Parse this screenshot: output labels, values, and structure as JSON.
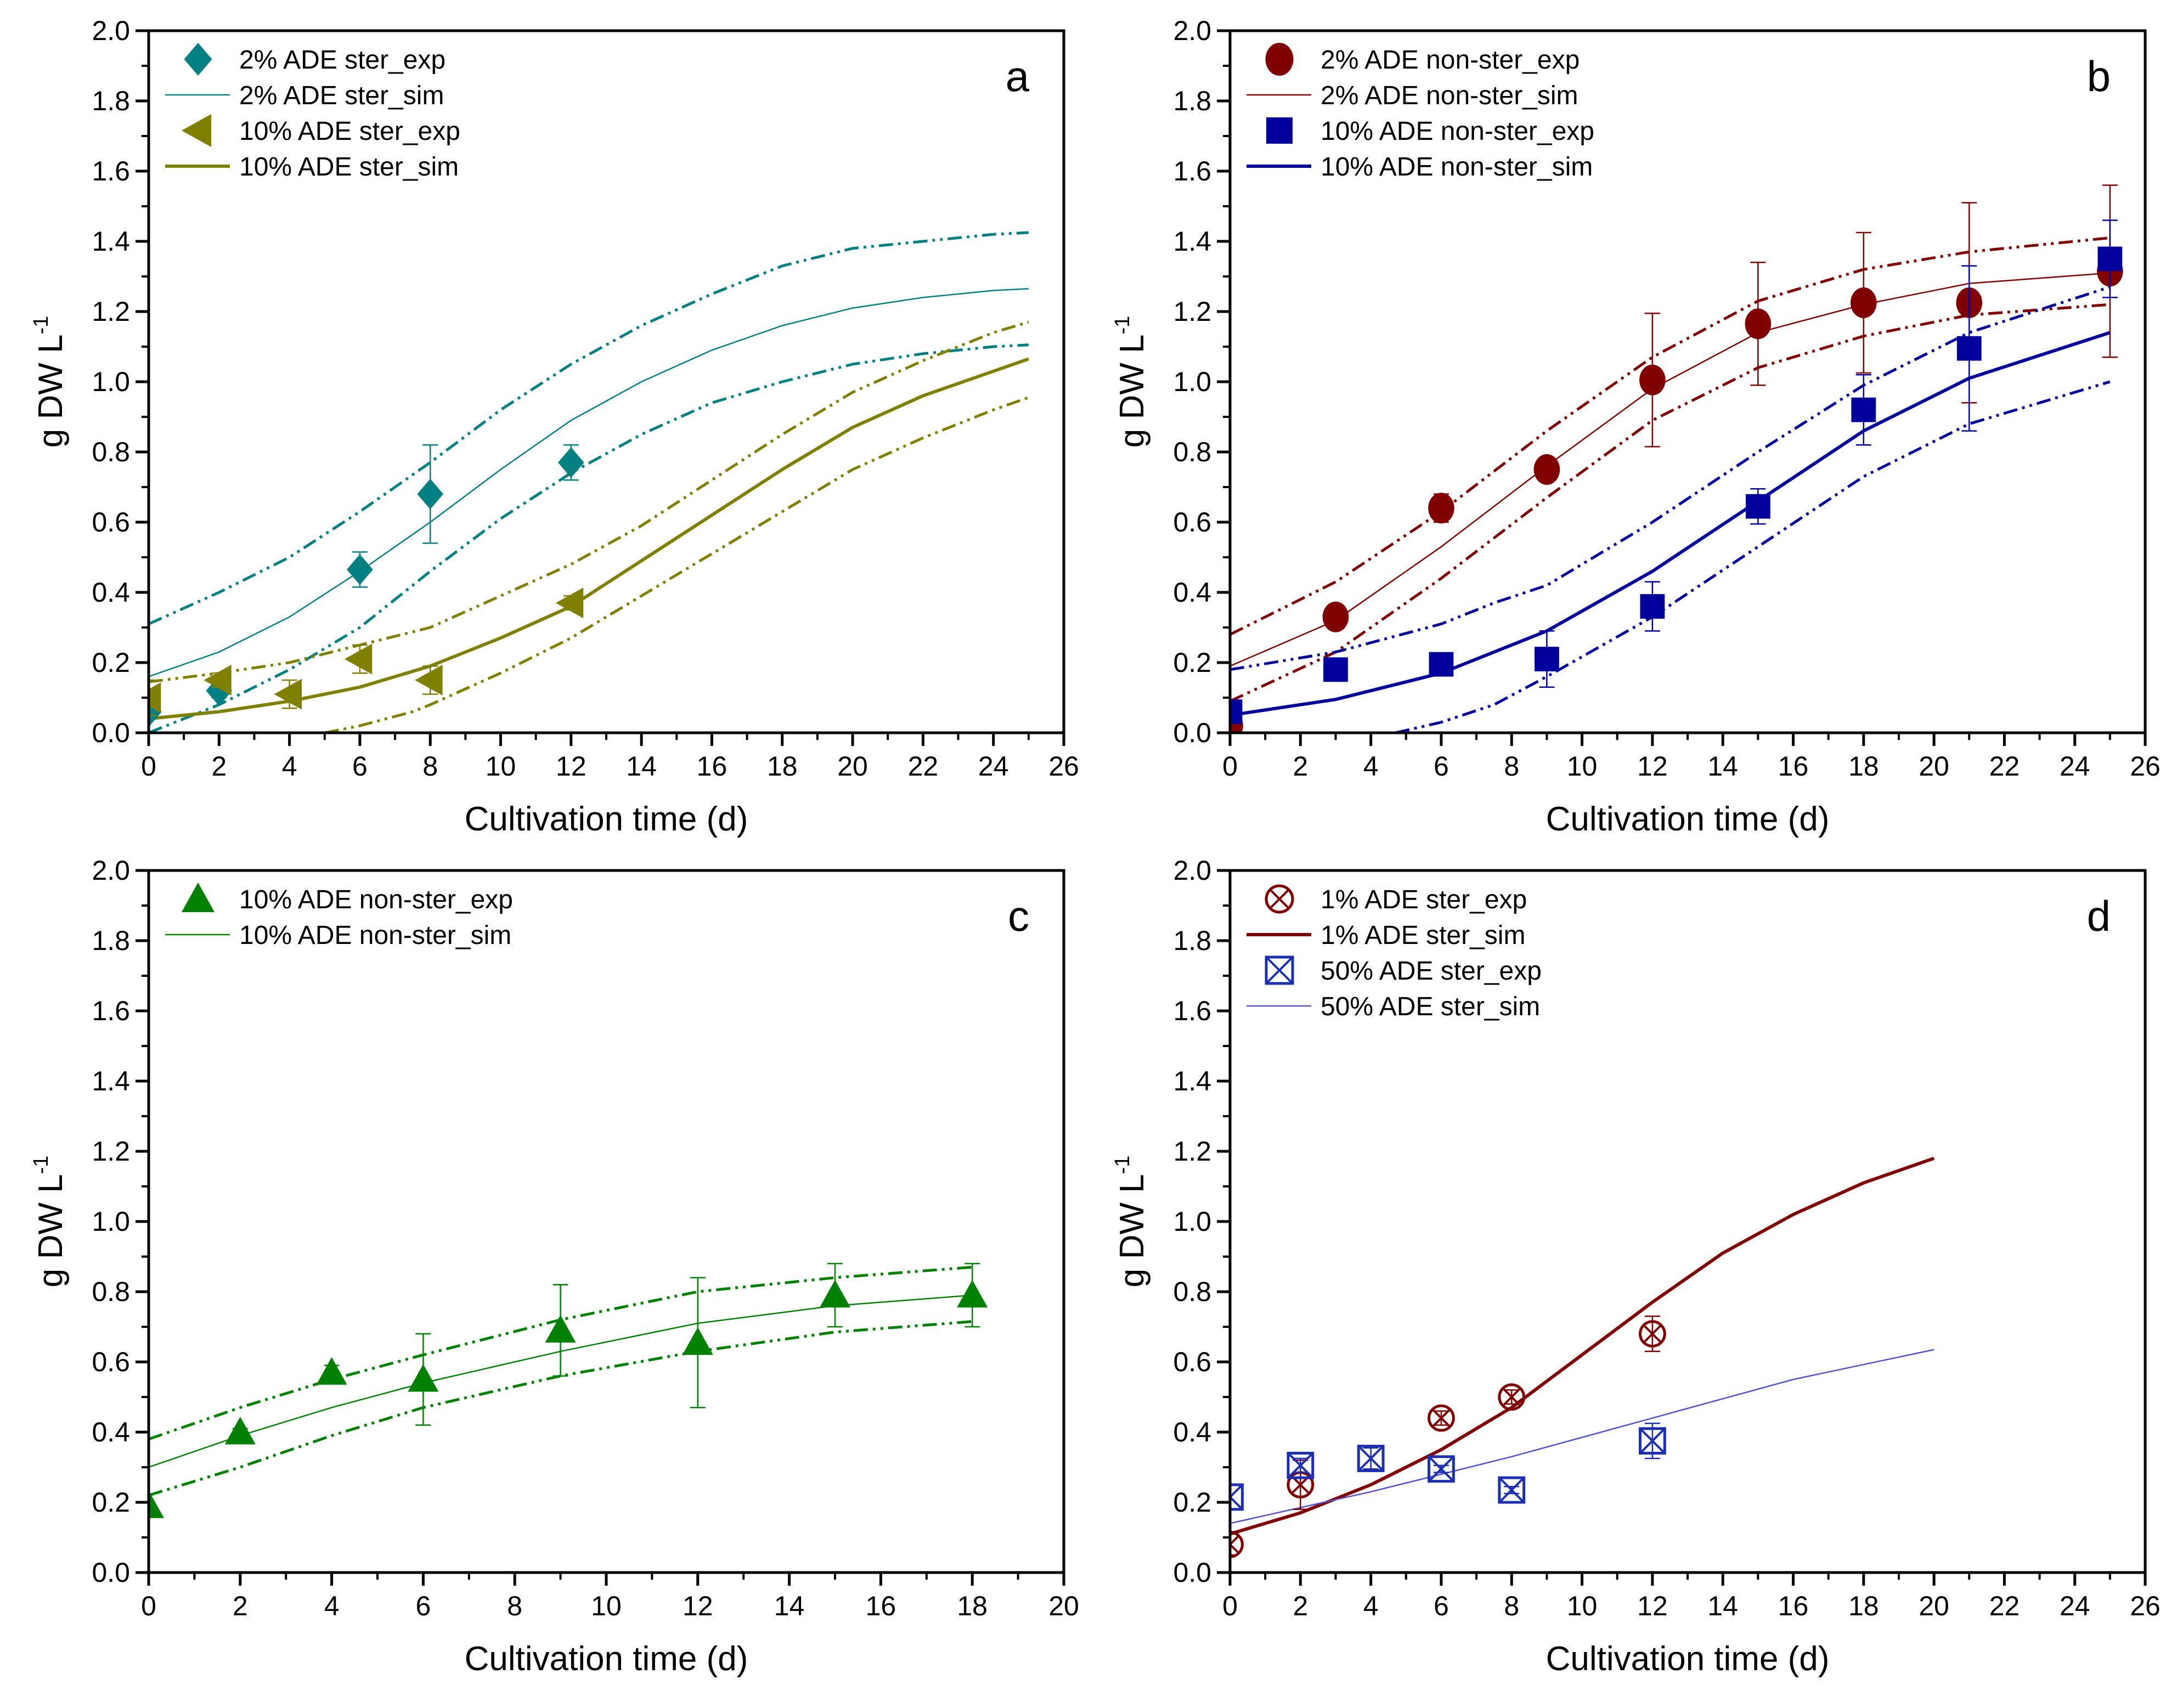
{
  "chart_data": [
    {
      "panel": "a",
      "type": "scatter+line",
      "xlabel": "Cultivation time (d)",
      "ylabel": "g DW L",
      "ylabel_sup": "-1",
      "xlim": [
        0,
        26
      ],
      "ylim": [
        0,
        2.0
      ],
      "xtick_step": 2,
      "ytick_step": 0.2,
      "xticks": [
        "0",
        "2",
        "4",
        "6",
        "8",
        "10",
        "12",
        "14",
        "16",
        "18",
        "20",
        "22",
        "24",
        "26"
      ],
      "yticks": [
        "0.0",
        "0.2",
        "0.4",
        "0.6",
        "0.8",
        "1.0",
        "1.2",
        "1.4",
        "1.6",
        "1.8",
        "2.0"
      ],
      "series": [
        {
          "name": "2% ADE ster_exp",
          "kind": "exp",
          "marker": "diamond",
          "color": "#008080",
          "x": [
            0,
            2,
            6,
            8,
            12
          ],
          "y": [
            0.06,
            0.12,
            0.465,
            0.68,
            0.77
          ],
          "err": [
            0,
            0.02,
            0.05,
            0.14,
            0.05
          ]
        },
        {
          "name": "2% ADE ster_sim",
          "kind": "sim",
          "width": "thin",
          "color": "#008080",
          "x": [
            0,
            2,
            4,
            6,
            8,
            10,
            12,
            14,
            16,
            18,
            20,
            22,
            24,
            25
          ],
          "y": [
            0.16,
            0.23,
            0.33,
            0.46,
            0.6,
            0.75,
            0.89,
            1.0,
            1.09,
            1.16,
            1.21,
            1.24,
            1.26,
            1.265
          ]
        },
        {
          "name": "",
          "kind": "band",
          "color": "#008080",
          "x": [
            0,
            2,
            4,
            6,
            8,
            10,
            12,
            14,
            16,
            18,
            20,
            22,
            24,
            25
          ],
          "y": [
            0.31,
            0.4,
            0.5,
            0.63,
            0.77,
            0.92,
            1.05,
            1.16,
            1.25,
            1.33,
            1.38,
            1.4,
            1.42,
            1.425
          ]
        },
        {
          "name": "",
          "kind": "band",
          "color": "#008080",
          "x": [
            0,
            2,
            4,
            6,
            8,
            10,
            12,
            14,
            16,
            18,
            20,
            22,
            24,
            25
          ],
          "y": [
            0.0,
            0.08,
            0.18,
            0.3,
            0.46,
            0.61,
            0.74,
            0.85,
            0.94,
            1.0,
            1.05,
            1.08,
            1.1,
            1.105
          ]
        },
        {
          "name": "10% ADE ster_exp",
          "kind": "exp",
          "marker": "triangle-left",
          "color": "#808000",
          "x": [
            0,
            2,
            4,
            6,
            8,
            12
          ],
          "y": [
            0.1,
            0.15,
            0.11,
            0.21,
            0.15,
            0.37
          ],
          "err": [
            0.05,
            0.02,
            0.04,
            0.04,
            0.04,
            0.02
          ]
        },
        {
          "name": "10% ADE ster_sim",
          "kind": "sim",
          "width": "thick",
          "color": "#808000",
          "x": [
            0,
            2,
            4,
            6,
            8,
            10,
            12,
            14,
            16,
            18,
            20,
            22,
            24,
            25
          ],
          "y": [
            0.04,
            0.06,
            0.09,
            0.13,
            0.19,
            0.27,
            0.36,
            0.49,
            0.62,
            0.75,
            0.87,
            0.96,
            1.03,
            1.065
          ]
        },
        {
          "name": "",
          "kind": "band",
          "color": "#808000",
          "x": [
            0,
            2,
            4,
            6,
            8,
            10,
            12,
            14,
            16,
            18,
            20,
            22,
            24,
            25
          ],
          "y": [
            0.145,
            0.17,
            0.2,
            0.25,
            0.3,
            0.39,
            0.48,
            0.59,
            0.72,
            0.85,
            0.97,
            1.06,
            1.14,
            1.17
          ]
        },
        {
          "name": "",
          "kind": "band",
          "color": "#808000",
          "x": [
            5,
            6,
            7.5,
            8,
            10,
            12,
            14,
            16,
            18,
            20,
            22,
            24,
            25
          ],
          "y": [
            0.0,
            0.02,
            0.06,
            0.08,
            0.17,
            0.27,
            0.39,
            0.51,
            0.63,
            0.75,
            0.84,
            0.92,
            0.955
          ]
        }
      ]
    },
    {
      "panel": "b",
      "type": "scatter+line",
      "xlabel": "Cultivation time (d)",
      "ylabel": "g DW L",
      "ylabel_sup": "-1",
      "xlim": [
        0,
        26
      ],
      "ylim": [
        0,
        2.0
      ],
      "xtick_step": 2,
      "ytick_step": 0.2,
      "xticks": [
        "0",
        "2",
        "4",
        "6",
        "8",
        "10",
        "12",
        "14",
        "16",
        "18",
        "20",
        "22",
        "24",
        "26"
      ],
      "yticks": [
        "0.0",
        "0.2",
        "0.4",
        "0.6",
        "0.8",
        "1.0",
        "1.2",
        "1.4",
        "1.6",
        "1.8",
        "2.0"
      ],
      "series": [
        {
          "name": "2% ADE non-ster_exp",
          "kind": "exp",
          "marker": "circle",
          "color": "#800000",
          "x": [
            0,
            3,
            6,
            9,
            12,
            15,
            18,
            21,
            25
          ],
          "y": [
            0.02,
            0.33,
            0.64,
            0.75,
            1.005,
            1.165,
            1.225,
            1.225,
            1.315
          ],
          "err": [
            0,
            0.02,
            0.04,
            0.03,
            0.19,
            0.175,
            0.2,
            0.285,
            0.245
          ]
        },
        {
          "name": "2% ADE non-ster_sim",
          "kind": "sim",
          "width": "thin",
          "color": "#800000",
          "x": [
            0,
            3,
            6,
            9,
            12,
            15,
            18,
            21,
            25
          ],
          "y": [
            0.19,
            0.32,
            0.53,
            0.76,
            0.98,
            1.14,
            1.22,
            1.28,
            1.31
          ]
        },
        {
          "name": "",
          "kind": "band",
          "color": "#800000",
          "x": [
            0,
            3,
            6,
            9,
            12,
            15,
            18,
            21,
            25
          ],
          "y": [
            0.28,
            0.43,
            0.63,
            0.86,
            1.07,
            1.23,
            1.32,
            1.37,
            1.41
          ]
        },
        {
          "name": "",
          "kind": "band",
          "color": "#800000",
          "x": [
            0,
            3,
            6,
            9,
            12,
            15,
            18,
            21,
            25
          ],
          "y": [
            0.09,
            0.23,
            0.44,
            0.67,
            0.89,
            1.04,
            1.13,
            1.19,
            1.22
          ]
        },
        {
          "name": "10% ADE non-ster_exp",
          "kind": "exp",
          "marker": "square",
          "color": "#00009C",
          "x": [
            0,
            3,
            6,
            9,
            12,
            15,
            18,
            21,
            25
          ],
          "y": [
            0.06,
            0.18,
            0.195,
            0.21,
            0.36,
            0.645,
            0.92,
            1.095,
            1.35
          ],
          "err": [
            0,
            0,
            0.01,
            0.08,
            0.07,
            0.05,
            0.1,
            0.235,
            0.11
          ]
        },
        {
          "name": "10% ADE non-ster_sim",
          "kind": "sim",
          "width": "thick",
          "color": "#00009C",
          "x": [
            0,
            3,
            6,
            9,
            12,
            15,
            18,
            21,
            25
          ],
          "y": [
            0.05,
            0.095,
            0.17,
            0.29,
            0.46,
            0.66,
            0.86,
            1.01,
            1.14
          ]
        },
        {
          "name": "",
          "kind": "band",
          "color": "#00009C",
          "x": [
            0,
            3,
            6,
            7.5,
            9,
            12,
            15,
            18,
            21,
            25
          ],
          "y": [
            0.18,
            0.23,
            0.31,
            0.37,
            0.42,
            0.6,
            0.8,
            0.99,
            1.14,
            1.27
          ]
        },
        {
          "name": "",
          "kind": "band",
          "color": "#00009C",
          "x": [
            4.7,
            6,
            7.5,
            9,
            12,
            15,
            18,
            21,
            25
          ],
          "y": [
            0.0,
            0.03,
            0.08,
            0.16,
            0.33,
            0.53,
            0.73,
            0.88,
            1.0
          ]
        }
      ]
    },
    {
      "panel": "c",
      "type": "scatter+line",
      "xlabel": "Cultivation time (d)",
      "ylabel": "g DW L",
      "ylabel_sup": "-1",
      "xlim": [
        0,
        20
      ],
      "ylim": [
        0,
        2.0
      ],
      "xtick_step": 2,
      "ytick_step": 0.2,
      "xticks": [
        "0",
        "2",
        "4",
        "6",
        "8",
        "10",
        "12",
        "14",
        "16",
        "18",
        "20"
      ],
      "yticks": [
        "0.0",
        "0.2",
        "0.4",
        "0.6",
        "0.8",
        "1.0",
        "1.2",
        "1.4",
        "1.6",
        "1.8",
        "2.0"
      ],
      "series": [
        {
          "name": "10% ADE non-ster_exp",
          "kind": "exp",
          "marker": "triangle-up",
          "color": "#008000",
          "x": [
            0,
            2,
            4,
            6,
            9,
            12,
            15,
            18
          ],
          "y": [
            0.19,
            0.4,
            0.57,
            0.55,
            0.69,
            0.655,
            0.79,
            0.79
          ],
          "err": [
            0,
            0.01,
            0.02,
            0.13,
            0.13,
            0.185,
            0.09,
            0.09
          ]
        },
        {
          "name": "10% ADE non-ster_sim",
          "kind": "sim",
          "width": "thin",
          "color": "#008000",
          "x": [
            0,
            2,
            4,
            6,
            9,
            12,
            15,
            18
          ],
          "y": [
            0.3,
            0.39,
            0.47,
            0.54,
            0.63,
            0.71,
            0.76,
            0.79
          ]
        },
        {
          "name": "",
          "kind": "band",
          "color": "#008000",
          "x": [
            0,
            2,
            4,
            6,
            9,
            12,
            15,
            18
          ],
          "y": [
            0.38,
            0.47,
            0.55,
            0.62,
            0.72,
            0.8,
            0.84,
            0.87
          ]
        },
        {
          "name": "",
          "kind": "band",
          "color": "#008000",
          "x": [
            0,
            2,
            4,
            6,
            9,
            12,
            15,
            18
          ],
          "y": [
            0.22,
            0.3,
            0.39,
            0.47,
            0.56,
            0.63,
            0.685,
            0.715
          ]
        }
      ]
    },
    {
      "panel": "d",
      "type": "scatter+line",
      "xlabel": "Cultivation time (d)",
      "ylabel": "g DW L",
      "ylabel_sup": "-1",
      "xlim": [
        0,
        26
      ],
      "ylim": [
        0,
        2.0
      ],
      "xtick_step": 2,
      "ytick_step": 0.2,
      "xticks": [
        "0",
        "2",
        "4",
        "6",
        "8",
        "10",
        "12",
        "14",
        "16",
        "18",
        "20",
        "22",
        "24",
        "26"
      ],
      "yticks": [
        "0.0",
        "0.2",
        "0.4",
        "0.6",
        "0.8",
        "1.0",
        "1.2",
        "1.4",
        "1.6",
        "1.8",
        "2.0"
      ],
      "series": [
        {
          "name": "1% ADE ster_exp",
          "kind": "exp",
          "marker": "circle-x",
          "color": "#800000",
          "x": [
            0,
            2,
            6,
            8,
            12
          ],
          "y": [
            0.08,
            0.25,
            0.44,
            0.5,
            0.68
          ],
          "err": [
            0.03,
            0.07,
            0.02,
            0.02,
            0.05
          ]
        },
        {
          "name": "1% ADE ster_sim",
          "kind": "sim",
          "width": "thick",
          "color": "#800000",
          "x": [
            0,
            2,
            4,
            6,
            8,
            10,
            12,
            14,
            16,
            18,
            20
          ],
          "y": [
            0.11,
            0.17,
            0.25,
            0.35,
            0.47,
            0.62,
            0.77,
            0.91,
            1.02,
            1.11,
            1.18
          ]
        },
        {
          "name": "50% ADE ster_exp",
          "kind": "exp",
          "marker": "square-x",
          "color": "#1C2FB0",
          "x": [
            0,
            2,
            4,
            6,
            8,
            12
          ],
          "y": [
            0.215,
            0.305,
            0.325,
            0.295,
            0.235,
            0.375
          ],
          "err": [
            0,
            0.02,
            0.03,
            0.01,
            0.01,
            0.05
          ]
        },
        {
          "name": "50% ADE ster_sim",
          "kind": "sim",
          "width": "thin",
          "color": "#5050D0",
          "x": [
            0,
            4,
            8,
            12,
            16,
            20
          ],
          "y": [
            0.14,
            0.23,
            0.33,
            0.44,
            0.55,
            0.635
          ]
        }
      ]
    }
  ]
}
